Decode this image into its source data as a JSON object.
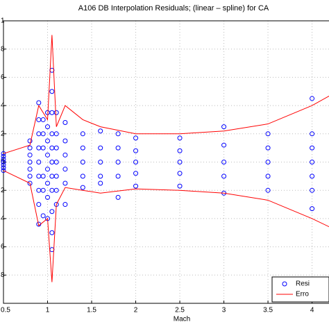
{
  "chart_data": {
    "type": "scatter",
    "title": "A106 DB Interpolation Residuals; (linear – spline) for CA",
    "xlabel": "Mach",
    "xlim": [
      0.5,
      4.2
    ],
    "xticks": [
      0.5,
      1,
      1.5,
      2,
      2.5,
      3,
      3.5,
      4
    ],
    "ylim": [
      -1,
      1
    ],
    "yticks": [
      1,
      {
        "value": 0.8,
        "label": "8"
      },
      {
        "value": 0.6,
        "label": "6"
      },
      {
        "value": 0.4,
        "label": "4"
      },
      {
        "value": 0.2,
        "label": "2"
      },
      0,
      {
        "value": -0.2,
        "label": "2"
      },
      {
        "value": -0.4,
        "label": "4"
      },
      {
        "value": -0.6,
        "label": "6"
      },
      {
        "value": -0.8,
        "label": "8"
      }
    ],
    "grid": true,
    "legend": "lower right",
    "series": [
      {
        "name": "Resi",
        "color": "#0000ff",
        "marker": "circle",
        "x": [
          0.5,
          0.5,
          0.5,
          0.5,
          0.5,
          0.5,
          0.5,
          0.8,
          0.8,
          0.8,
          0.8,
          0.8,
          0.8,
          0.8,
          0.9,
          0.9,
          0.9,
          0.9,
          0.9,
          0.9,
          0.9,
          0.9,
          0.9,
          0.95,
          0.95,
          0.95,
          0.95,
          0.95,
          0.95,
          1,
          1,
          1,
          1,
          1,
          1,
          1,
          1,
          1.05,
          1.05,
          1.05,
          1.05,
          1.05,
          1.05,
          1.05,
          1.05,
          1.05,
          1.05,
          1.05,
          1.1,
          1.1,
          1.1,
          1.1,
          1.1,
          1.1,
          1.1,
          1.2,
          1.2,
          1.2,
          1.2,
          1.2,
          1.2,
          1.4,
          1.4,
          1.4,
          1.4,
          1.4,
          1.6,
          1.6,
          1.6,
          1.6,
          1.6,
          1.8,
          1.8,
          1.8,
          1.8,
          1.8,
          2,
          2,
          2,
          2,
          2,
          2.5,
          2.5,
          2.5,
          2.5,
          2.5,
          3,
          3,
          3,
          3,
          3,
          3.5,
          3.5,
          3.5,
          3.5,
          3.5,
          4,
          4,
          4,
          4,
          4,
          4,
          4
        ],
        "values": [
          0.06,
          0.04,
          0.02,
          0,
          -0.02,
          -0.04,
          -0.06,
          0.15,
          0.1,
          0.05,
          0,
          -0.05,
          -0.1,
          -0.15,
          0.42,
          0.3,
          0.2,
          0.1,
          0,
          -0.1,
          -0.2,
          -0.3,
          -0.44,
          0.3,
          0.2,
          0.1,
          -0.1,
          -0.2,
          -0.38,
          0.35,
          0.25,
          0.15,
          0.05,
          -0.05,
          -0.15,
          -0.25,
          -0.4,
          0.65,
          0.5,
          0.35,
          0.2,
          0.1,
          0,
          -0.1,
          -0.2,
          -0.35,
          -0.5,
          -0.62,
          0.35,
          0.2,
          0.1,
          0,
          -0.1,
          -0.2,
          -0.3,
          0.28,
          0.15,
          0.05,
          -0.05,
          -0.15,
          -0.3,
          0.2,
          0.1,
          0,
          -0.1,
          -0.18,
          0.22,
          0.1,
          0,
          -0.1,
          -0.15,
          0.2,
          0.1,
          0,
          -0.1,
          -0.25,
          0.17,
          0.08,
          0,
          -0.08,
          -0.17,
          0.17,
          0.08,
          0,
          -0.08,
          -0.17,
          0.25,
          0.12,
          0,
          -0.1,
          -0.22,
          0.2,
          0.1,
          0,
          -0.1,
          -0.2,
          0.45,
          0.2,
          0.1,
          0,
          -0.1,
          -0.2,
          -0.33
        ]
      },
      {
        "name": "Erro",
        "color": "#ff0000",
        "marker": "line",
        "x": [
          0.5,
          0.8,
          0.9,
          1,
          1.05,
          1.1,
          1.2,
          1.4,
          1.6,
          2,
          2.5,
          3,
          3.5,
          4,
          4.2
        ],
        "values": [
          0.06,
          0.12,
          0.4,
          0.3,
          0.9,
          0.25,
          0.4,
          0.3,
          0.25,
          0.2,
          0.2,
          0.22,
          0.27,
          0.4,
          0.47
        ]
      },
      {
        "color": "#ff0000",
        "marker": "line",
        "x": [
          0.5,
          0.8,
          0.9,
          1,
          1.05,
          1.1,
          1.2,
          1.4,
          1.6,
          2,
          2.5,
          3,
          3.5,
          4,
          4.2
        ],
        "values": [
          -0.06,
          -0.15,
          -0.45,
          -0.4,
          -0.85,
          -0.3,
          -0.18,
          -0.2,
          -0.22,
          -0.19,
          -0.2,
          -0.22,
          -0.27,
          -0.4,
          -0.46
        ]
      }
    ]
  }
}
